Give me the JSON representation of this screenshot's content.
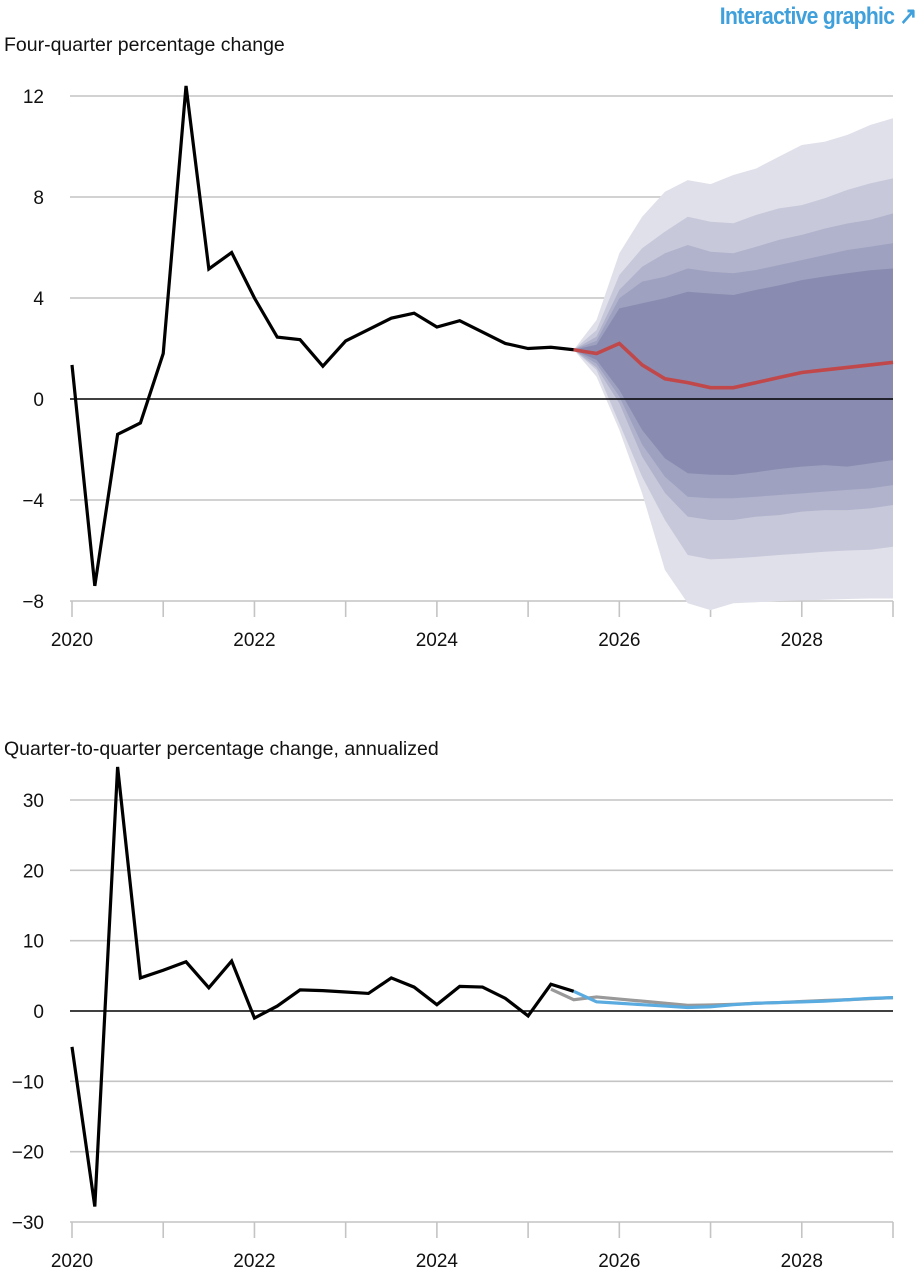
{
  "header": {
    "link_label": "Interactive graphic",
    "link_icon": "arrow-up-right-icon"
  },
  "colors": {
    "history": "#000000",
    "forecast": "#c0484a",
    "alt_forecast_gray": "#999999",
    "alt_forecast_blue": "#5aabe0",
    "bands": [
      "#e0e0ea",
      "#c7c8da",
      "#b1b3cc",
      "#9ea1bf",
      "#898cb0"
    ],
    "link": "#3fa0db"
  },
  "chart_data": [
    {
      "type": "area",
      "title": "Four-quarter percentage change",
      "xlabel": "",
      "ylabel": "",
      "xlim": [
        2020,
        2029
      ],
      "ylim": [
        -8,
        12
      ],
      "xticks": [
        "2020",
        "2022",
        "2024",
        "2026",
        "2028"
      ],
      "xtick_values": [
        2020,
        2022,
        2024,
        2026,
        2028
      ],
      "yticks": [
        "12",
        "8",
        "4",
        "0",
        "−4",
        "−8"
      ],
      "ytick_values": [
        12,
        8,
        4,
        0,
        -4,
        -8
      ],
      "grid": true,
      "history": {
        "x_start": 2020.0,
        "step": 0.25,
        "values": [
          1.35,
          -7.4,
          -1.4,
          -0.95,
          1.8,
          12.4,
          5.15,
          5.8,
          4.0,
          2.45,
          2.35,
          1.3,
          2.3,
          2.75,
          3.2,
          3.4,
          2.85,
          3.1,
          2.65,
          2.2,
          2.0,
          2.05,
          1.95
        ]
      },
      "forecast": {
        "x_start": 2025.5,
        "step": 0.25,
        "values": [
          1.95,
          1.8,
          2.2,
          1.35,
          0.8,
          0.65,
          0.45,
          0.45,
          0.65,
          0.85,
          1.05,
          1.15,
          1.25,
          1.35,
          1.45
        ]
      },
      "bands": {
        "x_start": 2025.5,
        "step": 0.25,
        "list": [
          {
            "upper": [
              1.95,
              3.13,
              5.77,
              7.22,
              8.21,
              8.67,
              8.51,
              8.87,
              9.13,
              9.6,
              10.06,
              10.19,
              10.46,
              10.85,
              11.12
            ],
            "lower": [
              1.95,
              0.88,
              -1.23,
              -3.74,
              -6.77,
              -8.09,
              -8.36,
              -8.09,
              -8.05,
              -8.0,
              -7.98,
              -7.95,
              -7.92,
              -7.9,
              -7.9
            ]
          },
          {
            "upper": [
              1.95,
              2.73,
              4.91,
              5.97,
              6.63,
              7.22,
              7.02,
              6.96,
              7.29,
              7.55,
              7.68,
              7.95,
              8.28,
              8.54,
              8.74
            ],
            "lower": [
              1.95,
              1.15,
              -0.96,
              -3.08,
              -4.79,
              -6.18,
              -6.35,
              -6.31,
              -6.25,
              -6.18,
              -6.12,
              -6.05,
              -6.0,
              -5.97,
              -5.85
            ]
          },
          {
            "upper": [
              1.95,
              2.47,
              4.32,
              5.24,
              5.77,
              6.1,
              5.83,
              5.77,
              6.03,
              6.3,
              6.5,
              6.75,
              6.95,
              7.1,
              7.35
            ],
            "lower": [
              1.95,
              1.25,
              -0.17,
              -2.28,
              -3.72,
              -4.66,
              -4.79,
              -4.79,
              -4.66,
              -4.6,
              -4.46,
              -4.4,
              -4.4,
              -4.33,
              -4.2
            ]
          },
          {
            "upper": [
              1.95,
              2.3,
              3.99,
              4.65,
              4.84,
              5.17,
              5.04,
              4.98,
              5.11,
              5.3,
              5.5,
              5.7,
              5.9,
              6.03,
              6.17
            ],
            "lower": [
              1.95,
              1.4,
              0.1,
              -1.8,
              -3.08,
              -3.87,
              -3.93,
              -3.93,
              -3.87,
              -3.8,
              -3.74,
              -3.67,
              -3.6,
              -3.54,
              -3.41
            ]
          },
          {
            "upper": [
              1.95,
              2.15,
              3.59,
              3.79,
              3.99,
              4.25,
              4.18,
              4.12,
              4.32,
              4.5,
              4.71,
              4.85,
              4.98,
              5.1,
              5.17
            ],
            "lower": [
              1.95,
              1.55,
              0.36,
              -1.23,
              -2.35,
              -2.94,
              -3.0,
              -3.01,
              -2.9,
              -2.77,
              -2.68,
              -2.62,
              -2.68,
              -2.55,
              -2.42
            ]
          }
        ]
      }
    },
    {
      "type": "line",
      "title": "Quarter-to-quarter percentage change, annualized",
      "xlabel": "",
      "ylabel": "",
      "xlim": [
        2020,
        2029
      ],
      "ylim": [
        -30,
        30
      ],
      "xticks": [
        "2020",
        "2022",
        "2024",
        "2026",
        "2028"
      ],
      "xtick_values": [
        2020,
        2022,
        2024,
        2026,
        2028
      ],
      "yticks": [
        "30",
        "20",
        "10",
        "0",
        "−10",
        "−20",
        "−30"
      ],
      "ytick_values": [
        30,
        20,
        10,
        0,
        -10,
        -20,
        -30
      ],
      "grid": true,
      "history": {
        "x_start": 2020.0,
        "step": 0.25,
        "values": [
          -5.1,
          -27.8,
          34.7,
          4.7,
          5.8,
          7.0,
          3.3,
          7.1,
          -1.0,
          0.7,
          3.0,
          2.9,
          2.7,
          2.5,
          4.7,
          3.4,
          0.9,
          3.5,
          3.4,
          1.8,
          -0.7,
          3.8,
          2.8
        ]
      },
      "gray_series": {
        "x_start": 2025.25,
        "step": 0.25,
        "values": [
          3.1,
          1.6,
          2.0,
          1.7,
          1.4,
          1.1,
          0.8,
          0.85,
          0.95,
          1.1,
          1.2,
          1.35,
          1.5,
          1.6,
          1.75,
          1.9
        ]
      },
      "blue_series": {
        "x_start": 2025.5,
        "step": 0.25,
        "values": [
          2.8,
          1.3,
          1.1,
          0.9,
          0.7,
          0.5,
          0.6,
          0.9,
          1.1,
          1.2,
          1.3,
          1.4,
          1.6,
          1.8,
          1.9
        ]
      }
    }
  ]
}
